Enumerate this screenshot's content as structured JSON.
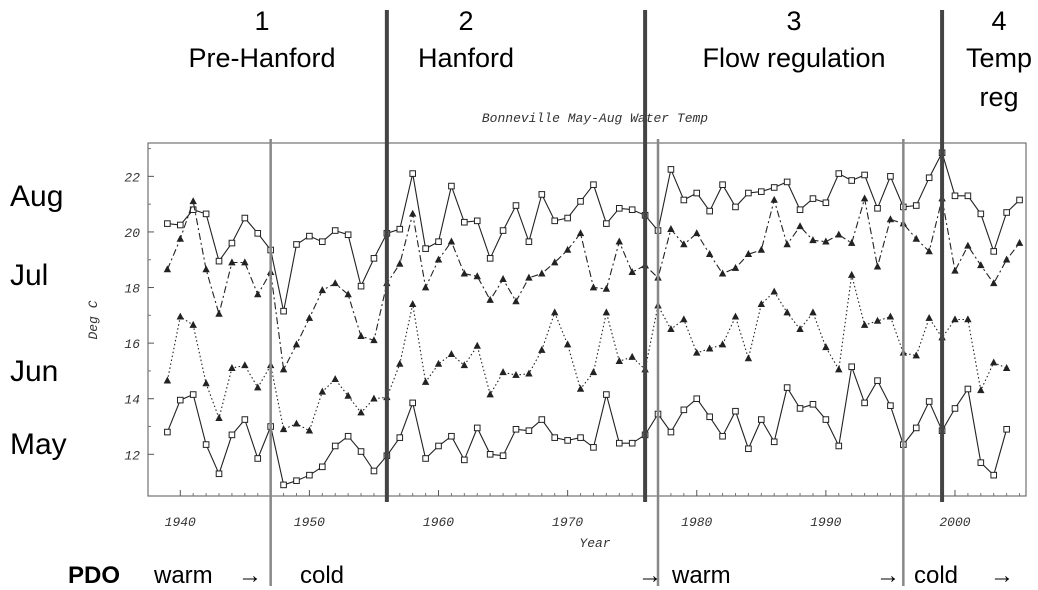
{
  "chart_data": {
    "type": "line",
    "title": "Bonneville May-Aug Water Temp",
    "xlabel": "Year",
    "ylabel": "Deg C",
    "xlim": [
      1937.5,
      2005.5
    ],
    "ylim": [
      10.5,
      23.2
    ],
    "x_ticks": [
      1940,
      1950,
      1960,
      1970,
      1980,
      1990,
      2000
    ],
    "y_ticks": [
      12,
      14,
      16,
      18,
      20,
      22
    ],
    "grid": false,
    "x_start": 1939,
    "series": [
      {
        "name": "Aug",
        "marker": "square",
        "dash": "solid",
        "values": [
          20.3,
          20.25,
          20.8,
          20.65,
          18.95,
          19.6,
          20.5,
          19.95,
          19.35,
          17.15,
          19.55,
          19.85,
          19.65,
          20.05,
          19.9,
          18.05,
          19.05,
          19.95,
          20.1,
          22.1,
          19.4,
          19.65,
          21.65,
          20.35,
          20.4,
          19.05,
          20.05,
          20.95,
          19.65,
          21.35,
          20.4,
          20.5,
          21.1,
          21.7,
          20.3,
          20.85,
          20.8,
          20.6,
          20.05,
          22.25,
          21.15,
          21.4,
          20.75,
          21.7,
          20.9,
          21.4,
          21.45,
          21.6,
          21.8,
          20.8,
          21.2,
          21.05,
          22.1,
          21.85,
          22.05,
          20.85,
          22.0,
          20.9,
          20.95,
          21.95,
          22.85,
          21.3,
          21.3,
          20.65,
          19.3,
          20.7,
          21.15
        ]
      },
      {
        "name": "Jul",
        "marker": "triangle",
        "dash": "dashdot",
        "values": [
          18.65,
          19.75,
          21.1,
          18.65,
          17.05,
          18.9,
          18.9,
          17.75,
          18.55,
          15.05,
          15.95,
          16.9,
          17.9,
          18.15,
          17.75,
          16.25,
          16.1,
          18.15,
          18.85,
          20.65,
          18.0,
          19.0,
          19.65,
          18.5,
          18.4,
          17.55,
          18.3,
          17.5,
          18.35,
          18.5,
          18.9,
          19.35,
          19.95,
          18.0,
          17.95,
          19.65,
          18.55,
          18.8,
          18.35,
          20.1,
          19.55,
          19.95,
          19.2,
          18.5,
          18.7,
          19.2,
          19.35,
          21.15,
          19.55,
          20.2,
          19.7,
          19.65,
          19.9,
          19.6,
          21.2,
          18.75,
          20.45,
          20.3,
          19.75,
          19.3,
          21.2,
          18.6,
          19.5,
          18.8,
          18.15,
          19.0,
          19.6
        ]
      },
      {
        "name": "Jun",
        "marker": "triangle",
        "dash": "dotted",
        "values": [
          14.65,
          16.95,
          16.65,
          14.55,
          13.3,
          15.1,
          15.2,
          14.4,
          15.2,
          12.9,
          13.1,
          12.85,
          14.25,
          14.7,
          14.1,
          13.5,
          14.0,
          14.05,
          15.25,
          17.4,
          14.6,
          15.25,
          15.6,
          15.2,
          15.9,
          14.15,
          14.95,
          14.85,
          14.9,
          15.75,
          17.1,
          15.95,
          14.35,
          14.95,
          17.1,
          15.35,
          15.5,
          15.05,
          17.35,
          16.5,
          16.85,
          15.65,
          15.8,
          15.95,
          16.95,
          15.45,
          17.4,
          17.85,
          17.1,
          16.5,
          17.1,
          15.85,
          15.05,
          18.45,
          16.65,
          16.8,
          16.95,
          15.65,
          15.55,
          16.9,
          16.2,
          16.85,
          16.85,
          14.3,
          15.3,
          15.1
        ]
      },
      {
        "name": "May",
        "marker": "square",
        "dash": "solid",
        "values": [
          12.8,
          13.95,
          14.15,
          12.35,
          11.3,
          12.7,
          13.25,
          11.85,
          13.0,
          10.9,
          11.05,
          11.25,
          11.55,
          12.3,
          12.65,
          12.1,
          11.4,
          11.95,
          12.6,
          13.85,
          11.85,
          12.3,
          12.65,
          11.8,
          12.95,
          12.0,
          11.95,
          12.9,
          12.85,
          13.25,
          12.6,
          12.5,
          12.6,
          12.25,
          14.15,
          12.4,
          12.4,
          12.7,
          13.45,
          12.8,
          13.6,
          14.0,
          13.35,
          12.65,
          13.55,
          12.2,
          13.25,
          12.45,
          14.4,
          13.65,
          13.8,
          13.25,
          12.3,
          15.15,
          13.85,
          14.65,
          13.75,
          12.35,
          12.95,
          13.9,
          12.85,
          13.65,
          14.35,
          11.7,
          11.25,
          12.9
        ]
      }
    ],
    "annotations": {
      "eras": [
        {
          "number": "1",
          "name": "Pre-Hanford"
        },
        {
          "number": "2",
          "name": "Hanford"
        },
        {
          "number": "3",
          "name": "Flow regulation"
        },
        {
          "number": "4",
          "name": "Temp",
          "name2": "reg"
        }
      ],
      "era_boundaries": [
        1956,
        1976,
        1999
      ],
      "pdo_boundaries": [
        1947,
        1977,
        1996
      ],
      "month_labels": [
        "Aug",
        "Jul",
        "Jun",
        "May"
      ],
      "pdo": {
        "title": "PDO",
        "segments": [
          {
            "label": "warm",
            "arrow": "→"
          },
          {
            "label": "cold",
            "arrow": "→"
          },
          {
            "label": "warm",
            "arrow": "→"
          },
          {
            "label": "cold",
            "arrow": "→"
          }
        ]
      }
    }
  }
}
